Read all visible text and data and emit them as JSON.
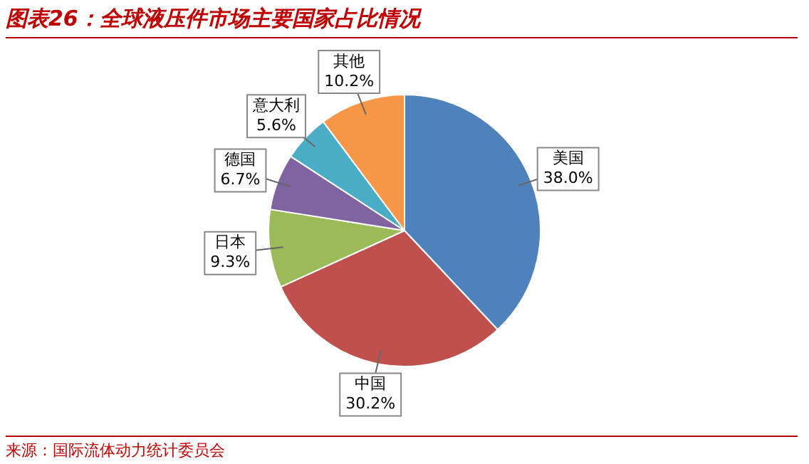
{
  "chart_data": {
    "type": "pie",
    "title": "图表26：全球液压件市场主要国家占比情况",
    "categories": [
      "美国",
      "中国",
      "日本",
      "德国",
      "意大利",
      "其他"
    ],
    "values": [
      38.0,
      30.2,
      9.3,
      6.7,
      5.6,
      10.2
    ],
    "colors": [
      "#4f81bd",
      "#c0504d",
      "#9bbb59",
      "#8064a2",
      "#4bacc6",
      "#f79646"
    ],
    "value_labels": [
      "38.0%",
      "30.2%",
      "9.3%",
      "6.7%",
      "5.6%",
      "10.2%"
    ],
    "legend": false,
    "annotations": [
      "来源：国际流体动力统计委员会"
    ]
  }
}
